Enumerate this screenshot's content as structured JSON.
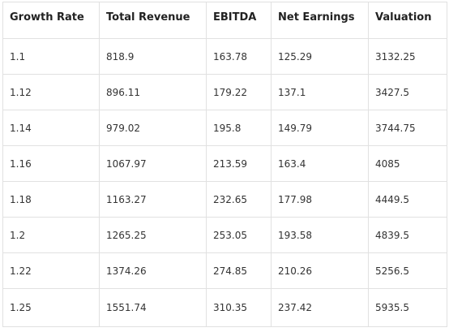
{
  "table": {
    "headers": [
      "Growth Rate",
      "Total Revenue",
      "EBITDA",
      "Net Earnings",
      "Valuation"
    ],
    "rows": [
      [
        "1.1",
        "818.9",
        "163.78",
        "125.29",
        "3132.25"
      ],
      [
        "1.12",
        "896.11",
        "179.22",
        "137.1",
        "3427.5"
      ],
      [
        "1.14",
        "979.02",
        "195.8",
        "149.79",
        "3744.75"
      ],
      [
        "1.16",
        "1067.97",
        "213.59",
        "163.4",
        "4085"
      ],
      [
        "1.18",
        "1163.27",
        "232.65",
        "177.98",
        "4449.5"
      ],
      [
        "1.2",
        "1265.25",
        "253.05",
        "193.58",
        "4839.5"
      ],
      [
        "1.22",
        "1374.26",
        "274.85",
        "210.26",
        "5256.5"
      ],
      [
        "1.25",
        "1551.74",
        "310.35",
        "237.42",
        "5935.5"
      ]
    ]
  }
}
